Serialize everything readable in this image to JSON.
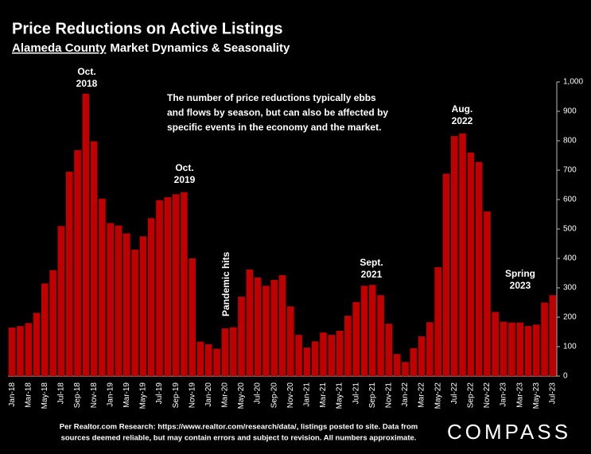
{
  "chart_data": {
    "type": "bar",
    "title": "Price Reductions on Active Listings",
    "subtitle": {
      "underlined": "Alameda County",
      "rest": "Market Dynamics & Seasonality"
    },
    "categories": [
      "Jan-18",
      null,
      "Mar-18",
      null,
      "May-18",
      null,
      "Jul-18",
      null,
      "Sep-18",
      null,
      "Nov-18",
      null,
      "Jan-19",
      null,
      "Mar-19",
      null,
      "May-19",
      null,
      "Jul-19",
      null,
      "Sep-19",
      null,
      "Nov-19",
      null,
      "Jan-20",
      null,
      "Mar-20",
      null,
      "May-20",
      null,
      "Jul-20",
      null,
      "Sep-20",
      null,
      "Nov-20",
      null,
      "Jan-21",
      null,
      "Mar-21",
      null,
      "May-21",
      null,
      "Jul-21",
      null,
      "Sep-21",
      null,
      "Nov-21",
      null,
      "Jan-22",
      null,
      "Mar-22",
      null,
      "May-22",
      null,
      "Jul-22",
      null,
      "Sep-22",
      null,
      "Nov-22",
      null,
      "Jan-23",
      null,
      "Mar-23",
      null,
      "May-23",
      null,
      "Jul-23"
    ],
    "values": [
      165,
      170,
      180,
      215,
      315,
      360,
      510,
      695,
      768,
      960,
      798,
      603,
      520,
      512,
      485,
      430,
      475,
      537,
      598,
      608,
      618,
      625,
      400,
      117,
      108,
      93,
      162,
      166,
      270,
      362,
      335,
      307,
      327,
      343,
      237,
      140,
      97,
      118,
      148,
      140,
      154,
      205,
      252,
      307,
      310,
      275,
      178,
      75,
      48,
      95,
      135,
      183,
      370,
      688,
      816,
      825,
      760,
      728,
      560,
      218,
      185,
      182,
      182,
      170,
      175,
      250,
      275
    ],
    "color": "#c00000",
    "ylim": [
      0,
      1000
    ],
    "yticks": [
      0,
      100,
      200,
      300,
      400,
      500,
      600,
      700,
      800,
      900,
      {
        "value": 1000,
        "label": "1,000"
      }
    ],
    "y_axis_side": "right",
    "grid": false,
    "annotations": [
      {
        "lines": [
          "Oct.",
          "2018"
        ]
      },
      {
        "lines": [
          "Oct.",
          "2019"
        ]
      },
      {
        "lines": [
          "Pandemic hits"
        ]
      },
      {
        "lines": [
          "Sept.",
          "2021"
        ]
      },
      {
        "lines": [
          "Aug.",
          "2022"
        ]
      },
      {
        "lines": [
          "Spring",
          "2023"
        ]
      }
    ],
    "note": [
      "The number of price reductions typically ebbs",
      "and flows by season, but can also be affected by",
      "specific events in the economy and the market."
    ],
    "footer": [
      "Per Realtor.com Research:  https://www.realtor.com/research/data/, listings posted to site. Data from",
      "sources deemed reliable, but may contain errors and subject to revision. All numbers approximate."
    ],
    "logo": "COMPASS"
  }
}
